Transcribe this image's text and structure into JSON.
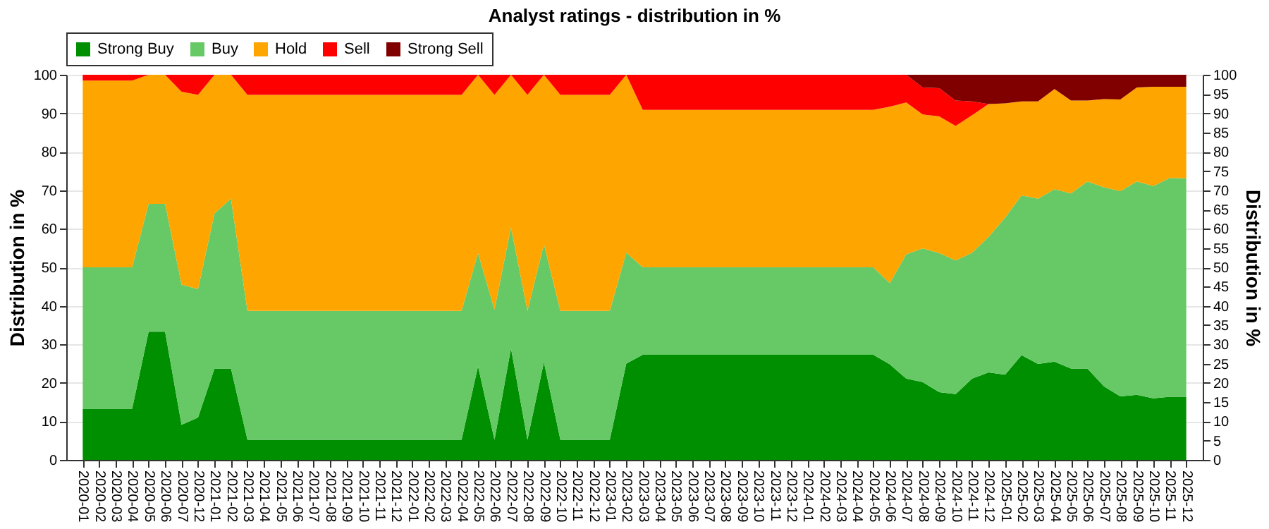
{
  "chart_data": {
    "type": "area",
    "stacked": true,
    "title": "Analyst ratings - distribution in %",
    "ylabel": "Distribution in %",
    "y2label": "Distribution in %",
    "categories": [
      "2020-01",
      "2020-02",
      "2020-03",
      "2020-04",
      "2020-05",
      "2020-06",
      "2020-07",
      "2020-12",
      "2021-01",
      "2021-02",
      "2021-03",
      "2021-04",
      "2021-05",
      "2021-06",
      "2021-07",
      "2021-08",
      "2021-09",
      "2021-10",
      "2021-11",
      "2021-12",
      "2022-01",
      "2022-02",
      "2022-03",
      "2022-04",
      "2022-05",
      "2022-06",
      "2022-07",
      "2022-08",
      "2022-09",
      "2022-10",
      "2022-11",
      "2022-12",
      "2023-01",
      "2023-02",
      "2023-03",
      "2023-04",
      "2023-05",
      "2023-06",
      "2023-07",
      "2023-08",
      "2023-09",
      "2023-10",
      "2023-11",
      "2023-12",
      "2024-01",
      "2024-02",
      "2024-03",
      "2024-04",
      "2024-05",
      "2024-06",
      "2024-07",
      "2024-08",
      "2024-09",
      "2024-10",
      "2024-11",
      "2024-12",
      "2025-01",
      "2025-02",
      "2025-03",
      "2025-04",
      "2025-05",
      "2025-06",
      "2025-07",
      "2025-08",
      "2025-09",
      "2025-10",
      "2025-11",
      "2025-12"
    ],
    "series": [
      {
        "name": "Strong Buy",
        "color": "#008f00",
        "values": [
          13.3,
          13.3,
          13.3,
          13.3,
          33.3,
          33.3,
          9.1,
          11,
          23.7,
          23.7,
          5.2,
          5.2,
          5.2,
          5.2,
          5.2,
          5.2,
          5.2,
          5.2,
          5.2,
          5.2,
          5.2,
          5.2,
          5.2,
          5.2,
          24.3,
          5.2,
          29,
          5.2,
          25.4,
          5.2,
          5.2,
          5.2,
          5.2,
          25,
          27.3,
          27.3,
          27.3,
          27.3,
          27.3,
          27.3,
          27.3,
          27.3,
          27.3,
          27.3,
          27.3,
          27.3,
          27.3,
          27.3,
          27.3,
          24.8,
          21.1,
          20.2,
          17.6,
          17.1,
          21.1,
          22.7,
          22.1,
          27.2,
          24.9,
          25.5,
          23.7,
          23.7,
          19.1,
          16.5,
          16.9,
          16,
          16.4,
          16.4
        ]
      },
      {
        "name": "Buy",
        "color": "#66c966",
        "values": [
          36.7,
          36.7,
          36.7,
          36.7,
          33.2,
          33.2,
          36.4,
          33.3,
          40.3,
          44.1,
          33.5,
          33.5,
          33.5,
          33.5,
          33.5,
          33.5,
          33.5,
          33.5,
          33.5,
          33.5,
          33.5,
          33.5,
          33.5,
          33.5,
          29.4,
          33.8,
          31.4,
          33.5,
          30.6,
          33.5,
          33.5,
          33.5,
          33.5,
          28.8,
          22.7,
          22.7,
          22.7,
          22.7,
          22.7,
          22.7,
          22.7,
          22.7,
          22.7,
          22.7,
          22.7,
          22.7,
          22.7,
          22.7,
          22.7,
          21.1,
          32.3,
          34.7,
          36.1,
          34.7,
          32.7,
          35.2,
          40.8,
          41.5,
          42.9,
          44.8,
          45.5,
          48.6,
          51.7,
          53.3,
          55.4,
          55.1,
          56.8,
          56.7
        ]
      },
      {
        "name": "Hold",
        "color": "#ffa500",
        "values": [
          48.5,
          48.5,
          48.5,
          48.5,
          33.5,
          33.5,
          50.1,
          50.5,
          36,
          32.2,
          56.1,
          56.1,
          56.1,
          56.1,
          56.1,
          56.1,
          56.1,
          56.1,
          56.1,
          56.1,
          56.1,
          56.1,
          56.1,
          56.1,
          46.3,
          55.8,
          39.6,
          56.1,
          44,
          56.1,
          56.1,
          56.1,
          56.1,
          46.2,
          40.9,
          40.9,
          40.9,
          40.9,
          40.9,
          40.9,
          40.9,
          40.9,
          40.9,
          40.9,
          40.9,
          40.9,
          40.9,
          40.9,
          40.9,
          45.8,
          39.4,
          34.8,
          35.5,
          34.9,
          35.7,
          34.5,
          29.7,
          24.4,
          25.3,
          26,
          24.1,
          21,
          22.9,
          23.8,
          24.4,
          25.8,
          23.7,
          23.8
        ]
      },
      {
        "name": "Sell",
        "color": "#ff0000",
        "values": [
          1.5,
          1.5,
          1.5,
          1.5,
          0,
          0,
          4.4,
          5.2,
          0,
          0,
          5.2,
          5.2,
          5.2,
          5.2,
          5.2,
          5.2,
          5.2,
          5.2,
          5.2,
          5.2,
          5.2,
          5.2,
          5.2,
          5.2,
          0,
          5.2,
          0,
          5.2,
          0,
          5.2,
          5.2,
          5.2,
          5.2,
          0,
          9.1,
          9.1,
          9.1,
          9.1,
          9.1,
          9.1,
          9.1,
          9.1,
          9.1,
          9.1,
          9.1,
          9.1,
          9.1,
          9.1,
          9.1,
          8.3,
          7.2,
          7,
          7.3,
          6.6,
          3.6,
          0,
          0,
          0,
          0,
          0,
          0,
          0,
          0,
          0,
          0,
          0,
          0,
          0
        ]
      },
      {
        "name": "Strong Sell",
        "color": "#800000",
        "values": [
          0,
          0,
          0,
          0,
          0,
          0,
          0,
          0,
          0,
          0,
          0,
          0,
          0,
          0,
          0,
          0,
          0,
          0,
          0,
          0,
          0,
          0,
          0,
          0,
          0,
          0,
          0,
          0,
          0,
          0,
          0,
          0,
          0,
          0,
          0,
          0,
          0,
          0,
          0,
          0,
          0,
          0,
          0,
          0,
          0,
          0,
          0,
          0,
          0,
          0,
          0,
          3.3,
          3.5,
          6.7,
          6.9,
          7.6,
          7.4,
          6.9,
          6.9,
          3.7,
          6.7,
          6.7,
          6.3,
          6.4,
          3.3,
          3.1,
          3.1,
          3.1
        ]
      }
    ],
    "ylim": [
      0,
      100
    ],
    "yticks": [
      0,
      10,
      20,
      30,
      40,
      50,
      60,
      70,
      80,
      90,
      100
    ],
    "y2lim": [
      0,
      100
    ],
    "y2ticks": [
      0,
      5,
      10,
      15,
      20,
      25,
      30,
      35,
      40,
      45,
      50,
      55,
      60,
      65,
      70,
      75,
      80,
      85,
      90,
      95,
      100
    ],
    "grid": "y",
    "legend": "top"
  }
}
